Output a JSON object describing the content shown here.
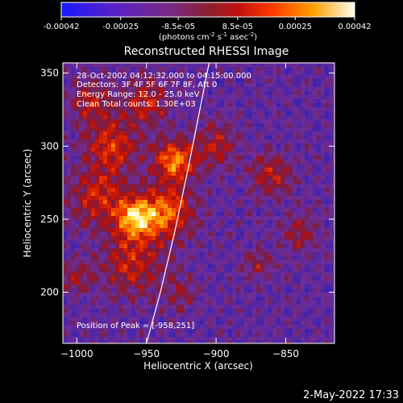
{
  "chart_data": {
    "type": "heatmap",
    "title": "Reconstructed RHESSI Image",
    "xlabel": "Heliocentric X (arcsec)",
    "ylabel": "Heliocentric Y (arcsec)",
    "xlim": [
      -1010,
      -815
    ],
    "ylim": [
      165,
      357
    ],
    "x_ticks": [
      -1000,
      -950,
      -900,
      -850
    ],
    "y_ticks": [
      200,
      250,
      300,
      350
    ],
    "colorbar": {
      "label_text": "(photons cm",
      "label_exp1": "-2",
      "label_mid": " s",
      "label_exp2": "-1",
      "label_end": " asec",
      "label_exp3": "-2",
      "label_close": ")",
      "range": [
        -0.00042,
        0.00042
      ],
      "ticks": [
        -0.00042,
        -0.00025,
        -8.5e-05,
        8.5e-05,
        0.00025,
        0.00042
      ],
      "tick_labels": [
        "-0.00042",
        "-0.00025",
        "-8.5e-05",
        "8.5e-05",
        "0.00025",
        "0.00042"
      ]
    },
    "annotations": {
      "time_range": "28-Oct-2002 04:12:32.000 to 04:15:00.000",
      "detectors": "Detectors: 3F 4F 5F 6F 7F 8F, Att 0",
      "energy_range": "Energy Range: 12.0 - 25.0 keV",
      "method": "Clean     Total counts: 1.30E+03",
      "peak": "Position of Peak = [-958,251]"
    },
    "peak_position": [
      -958,
      251
    ],
    "limb_curve": [
      [
        -950,
        165
      ],
      [
        -940,
        200
      ],
      [
        -930,
        240
      ],
      [
        -920,
        285
      ],
      [
        -905,
        357
      ]
    ],
    "grid": false
  },
  "footer": {
    "timestamp": "2-May-2022 17:33"
  },
  "colors": {
    "background": "#000000",
    "axis": "#ffffff",
    "text": "#ffffff"
  }
}
